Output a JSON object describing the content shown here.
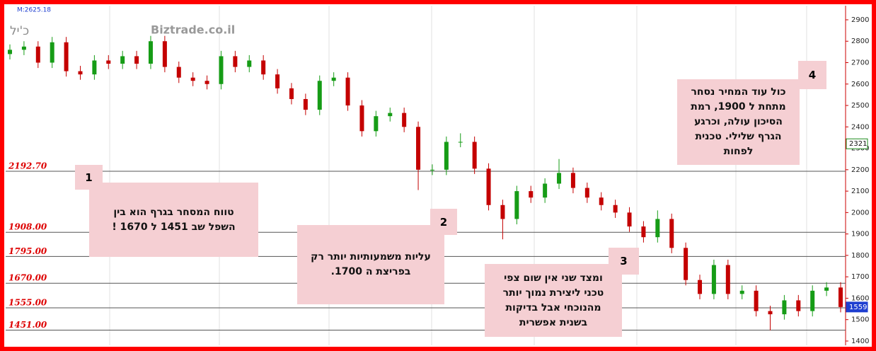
{
  "chart_data": {
    "type": "candlestick",
    "symbol": "כ'יל",
    "watermark": "Biztrade.co.il",
    "info": "M:2625.18",
    "ylim": [
      1380,
      2966
    ],
    "yticks": [
      1400,
      1500,
      1600,
      1700,
      1800,
      1900,
      2000,
      2100,
      2200,
      2300,
      2400,
      2500,
      2600,
      2700,
      2800,
      2900
    ],
    "up_color": "#169c16",
    "down_color": "#c40000",
    "open": [
      2740,
      2760,
      2775,
      2700,
      2795,
      2660,
      2645,
      2710,
      2695,
      2730,
      2695,
      2800,
      2680,
      2630,
      2615,
      2600,
      2730,
      2680,
      2710,
      2645,
      2580,
      2530,
      2480,
      2615,
      2630,
      2500,
      2380,
      2450,
      2465,
      2400,
      2200,
      2200,
      2330,
      2330,
      2205,
      2035,
      1970,
      2100,
      2070,
      2135,
      2185,
      2115,
      2070,
      2035,
      2000,
      1935,
      1885,
      1970,
      1835,
      1685,
      1620,
      1755,
      1620,
      1635,
      1540,
      1525,
      1590,
      1540,
      1635,
      1650
    ],
    "high": [
      2785,
      2800,
      2800,
      2820,
      2820,
      2685,
      2735,
      2735,
      2755,
      2755,
      2825,
      2825,
      2705,
      2655,
      2640,
      2755,
      2755,
      2735,
      2735,
      2670,
      2605,
      2555,
      2640,
      2655,
      2655,
      2525,
      2475,
      2490,
      2490,
      2425,
      2225,
      2355,
      2370,
      2355,
      2230,
      2060,
      2125,
      2125,
      2160,
      2250,
      2210,
      2140,
      2095,
      2060,
      2025,
      1960,
      2010,
      1995,
      1860,
      1710,
      1780,
      1780,
      1660,
      1660,
      1565,
      1615,
      1615,
      1660,
      1675,
      1675
    ],
    "low": [
      2715,
      2735,
      2675,
      2675,
      2635,
      2620,
      2620,
      2670,
      2670,
      2670,
      2670,
      2655,
      2605,
      2590,
      2575,
      2575,
      2655,
      2655,
      2620,
      2555,
      2505,
      2455,
      2455,
      2590,
      2475,
      2355,
      2355,
      2425,
      2375,
      2105,
      2175,
      2175,
      2305,
      2180,
      2010,
      1875,
      1945,
      2045,
      2045,
      2110,
      2090,
      2045,
      2010,
      1975,
      1910,
      1860,
      1860,
      1810,
      1660,
      1595,
      1595,
      1595,
      1595,
      1515,
      1450,
      1500,
      1515,
      1515,
      1610,
      1534
    ],
    "close": [
      2760,
      2775,
      2700,
      2795,
      2660,
      2645,
      2710,
      2695,
      2730,
      2695,
      2800,
      2680,
      2630,
      2615,
      2600,
      2730,
      2680,
      2710,
      2645,
      2580,
      2530,
      2480,
      2615,
      2630,
      2500,
      2380,
      2450,
      2465,
      2400,
      2200,
      2200,
      2330,
      2330,
      2205,
      2035,
      1970,
      2100,
      2070,
      2135,
      2185,
      2115,
      2070,
      2035,
      2000,
      1935,
      1885,
      1970,
      1835,
      1685,
      1620,
      1755,
      1620,
      1635,
      1540,
      1525,
      1590,
      1540,
      1635,
      1650,
      1559
    ],
    "levels": [
      {
        "value": 2192.7,
        "label": "2192.70"
      },
      {
        "value": 1908,
        "label": "1908.00"
      },
      {
        "value": 1795,
        "label": "1795.00"
      },
      {
        "value": 1670,
        "label": "1670.00"
      },
      {
        "value": 1555,
        "label": "1555.00"
      },
      {
        "value": 1451,
        "label": "1451.00"
      }
    ],
    "markers": [
      {
        "value": 2321,
        "color": "#1a8a1a"
      },
      {
        "value": 1559,
        "color": "#1f3fd0"
      }
    ],
    "annotations": [
      {
        "number": "1",
        "lines": [
          "טווח המסחר  בגרף  הוא  בין",
          "השפל שב  1451  ל  1670 !"
        ]
      },
      {
        "number": "2",
        "lines": [
          "עליות משמעותיות יותר  רק",
          "בפריצת ה  1700."
        ]
      },
      {
        "number": "3",
        "lines": [
          "ומצד  שני  אין  שום צפי",
          "טכני  ליצירת  נמוך יותר",
          "מהנוכחי אבל   בדיקות",
          "בשנית  אפשרית"
        ]
      },
      {
        "number": "4",
        "lines": [
          "כול עוד  המחיר  נסחר",
          "מתחת ל  1900,  רמת",
          "הסיכון עולה, וכרגע",
          "הגרף שלילי. טכנית",
          "לפחות"
        ]
      }
    ]
  }
}
